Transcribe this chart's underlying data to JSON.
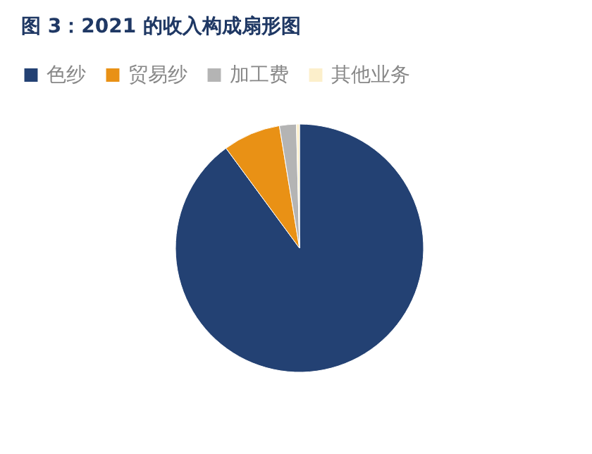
{
  "chart_data": {
    "type": "pie",
    "title": "图 3：2021 的收入构成扇形图",
    "categories": [
      "色纱",
      "贸易纱",
      "加工费",
      "其他业务"
    ],
    "values": [
      89.9,
      7.5,
      2.2,
      0.4
    ],
    "colors": [
      "#234173",
      "#e99115",
      "#b4b4b4",
      "#fcefcb"
    ],
    "legend": "top"
  }
}
